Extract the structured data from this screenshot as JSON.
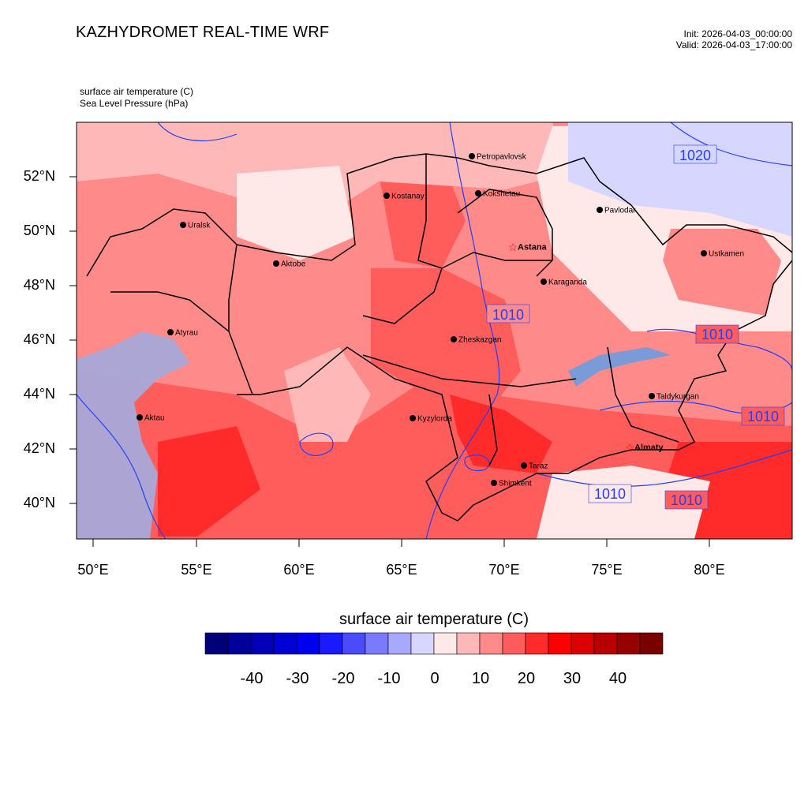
{
  "header": {
    "title": "KAZHYDROMET REAL-TIME WRF",
    "init": "Init: 2026-04-03_00:00:00",
    "valid": "Valid: 2026-04-03_17:00:00"
  },
  "variables": {
    "line1": "surface air temperature   (C)",
    "line2": "Sea Level Pressure   (hPa)"
  },
  "axes": {
    "lat_labels": [
      "52°N",
      "50°N",
      "48°N",
      "46°N",
      "44°N",
      "42°N",
      "40°N"
    ],
    "lon_labels": [
      "50°E",
      "55°E",
      "60°E",
      "65°E",
      "70°E",
      "75°E",
      "80°E"
    ]
  },
  "cities": [
    {
      "name": "Petropavlovsk",
      "capital": false
    },
    {
      "name": "Kostanay",
      "capital": false
    },
    {
      "name": "Kokshetau",
      "capital": false
    },
    {
      "name": "Pavlodar",
      "capital": false
    },
    {
      "name": "Uralsk",
      "capital": false
    },
    {
      "name": "Astana",
      "capital": true
    },
    {
      "name": "Aktobe",
      "capital": false
    },
    {
      "name": "Ustkamen",
      "capital": false
    },
    {
      "name": "Karaganda",
      "capital": false
    },
    {
      "name": "Atyrau",
      "capital": false
    },
    {
      "name": "Zheskazgan",
      "capital": false
    },
    {
      "name": "Taldykurgan",
      "capital": false
    },
    {
      "name": "Aktau",
      "capital": false
    },
    {
      "name": "Kyzylorda",
      "capital": false
    },
    {
      "name": "Almaty",
      "capital": true
    },
    {
      "name": "Taraz",
      "capital": false
    },
    {
      "name": "Shimkent",
      "capital": false
    }
  ],
  "isobar_labels": [
    "1020",
    "1010",
    "1010",
    "1010",
    "1010",
    "1010"
  ],
  "colorbar": {
    "title": "surface air temperature  (C)",
    "labels": [
      "-40",
      "-30",
      "-20",
      "-10",
      "0",
      "10",
      "20",
      "30",
      "40"
    ],
    "colors": [
      "#00007a",
      "#00009a",
      "#0000b8",
      "#0000d4",
      "#0000f0",
      "#1a1aff",
      "#4a4aff",
      "#7a7aff",
      "#a8a8ff",
      "#d6d6ff",
      "#ffe8e8",
      "#ffb8b8",
      "#ff8a8a",
      "#ff5c5c",
      "#ff2a2a",
      "#ff0000",
      "#dc0000",
      "#b80000",
      "#960000",
      "#7a0000"
    ]
  },
  "colors": {
    "isobar": "#2040ff",
    "border": "#000000",
    "capital_marker": "#ff0000"
  }
}
